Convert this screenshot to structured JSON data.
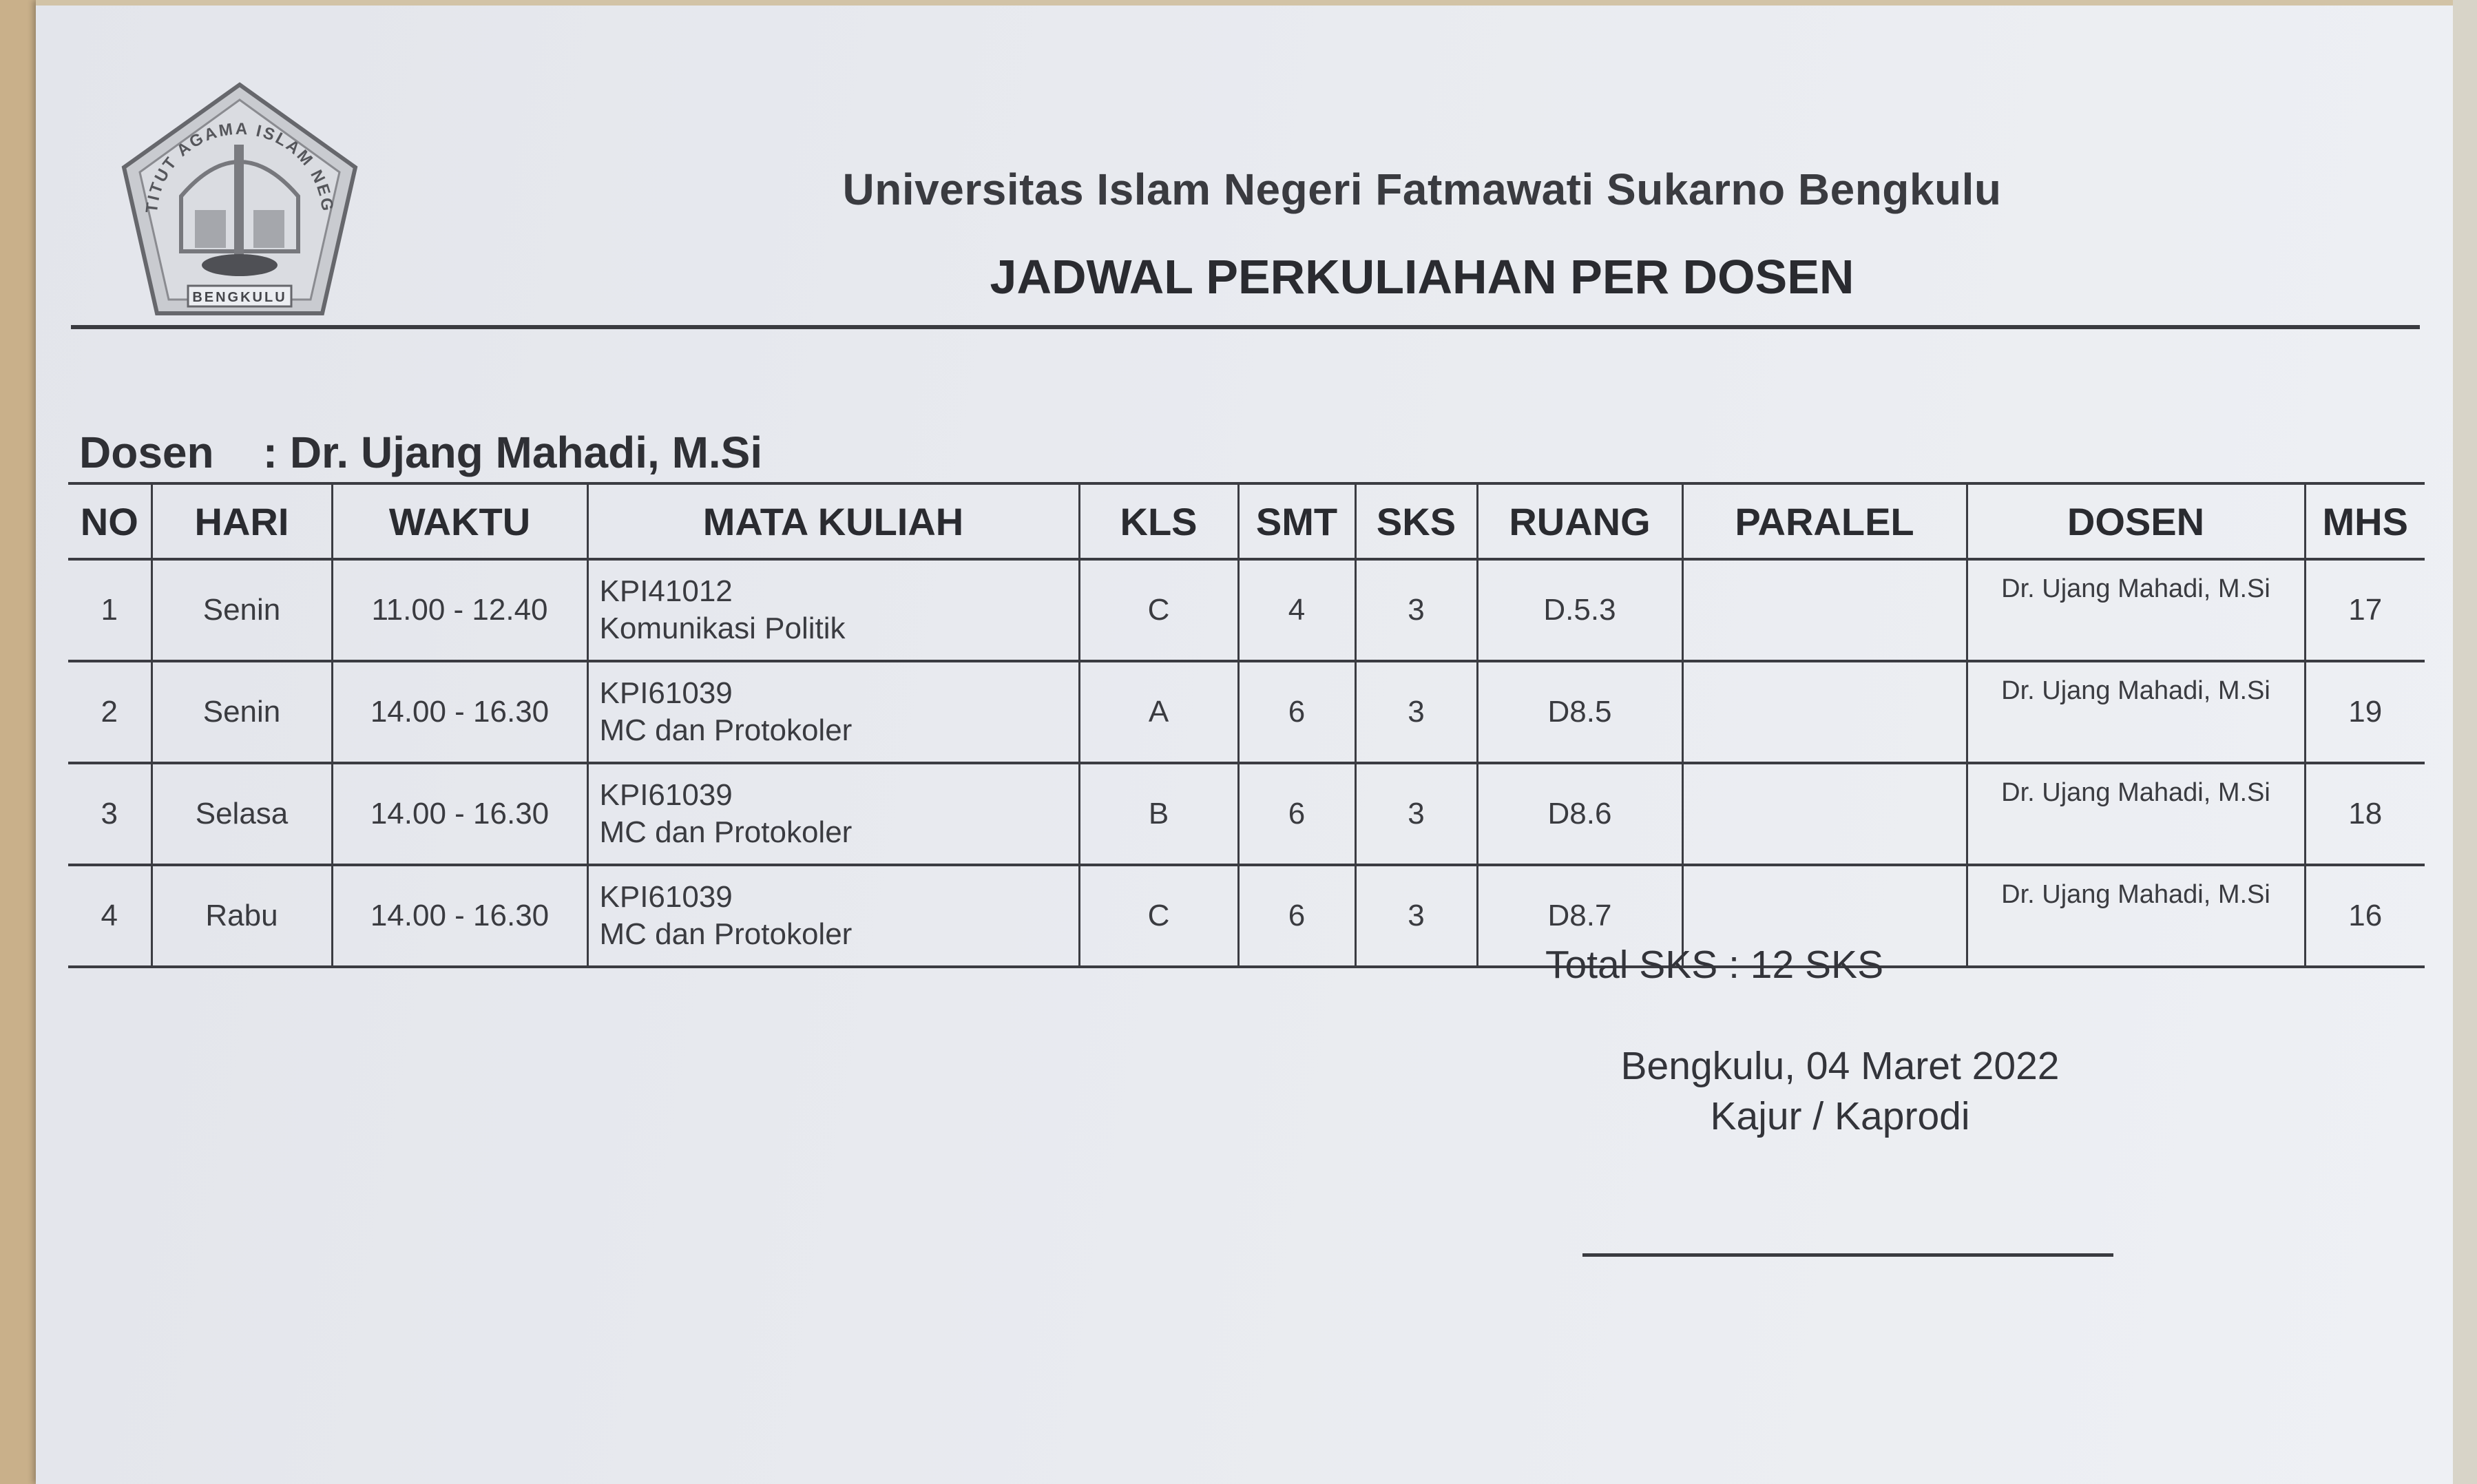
{
  "header": {
    "logo": {
      "ring_text": "INSTITUT AGAMA ISLAM NEGERI",
      "banner_text": "BENGKULU"
    },
    "institution": "Universitas Islam Negeri Fatmawati Sukarno Bengkulu",
    "title": "JADWAL PERKULIAHAN PER DOSEN"
  },
  "lecturer_line": "Dosen    : Dr. Ujang Mahadi, M.Si",
  "table": {
    "columns": [
      "NO",
      "HARI",
      "WAKTU",
      "MATA KULIAH",
      "KLS",
      "SMT",
      "SKS",
      "RUANG",
      "PARALEL",
      "DOSEN",
      "MHS"
    ],
    "rows": [
      {
        "no": "1",
        "hari": "Senin",
        "waktu": "11.00 - 12.40",
        "kode": "KPI41012",
        "mata_kuliah": "Komunikasi Politik",
        "kls": "C",
        "smt": "4",
        "sks": "3",
        "ruang": "D.5.3",
        "paralel": "",
        "dosen": "Dr. Ujang Mahadi, M.Si",
        "mhs": "17"
      },
      {
        "no": "2",
        "hari": "Senin",
        "waktu": "14.00 - 16.30",
        "kode": "KPI61039",
        "mata_kuliah": "MC dan Protokoler",
        "kls": "A",
        "smt": "6",
        "sks": "3",
        "ruang": "D8.5",
        "paralel": "",
        "dosen": "Dr. Ujang Mahadi, M.Si",
        "mhs": "19"
      },
      {
        "no": "3",
        "hari": "Selasa",
        "waktu": "14.00 - 16.30",
        "kode": "KPI61039",
        "mata_kuliah": "MC dan Protokoler",
        "kls": "B",
        "smt": "6",
        "sks": "3",
        "ruang": "D8.6",
        "paralel": "",
        "dosen": "Dr. Ujang Mahadi, M.Si",
        "mhs": "18"
      },
      {
        "no": "4",
        "hari": "Rabu",
        "waktu": "14.00 - 16.30",
        "kode": "KPI61039",
        "mata_kuliah": "MC dan Protokoler",
        "kls": "C",
        "smt": "6",
        "sks": "3",
        "ruang": "D8.7",
        "paralel": "",
        "dosen": "Dr. Ujang Mahadi, M.Si",
        "mhs": "16"
      }
    ]
  },
  "total_sks": "Total SKS : 12 SKS",
  "signature": {
    "place_date": "Bengkulu, 04 Maret 2022",
    "role": "Kajur / Kaprodi"
  }
}
